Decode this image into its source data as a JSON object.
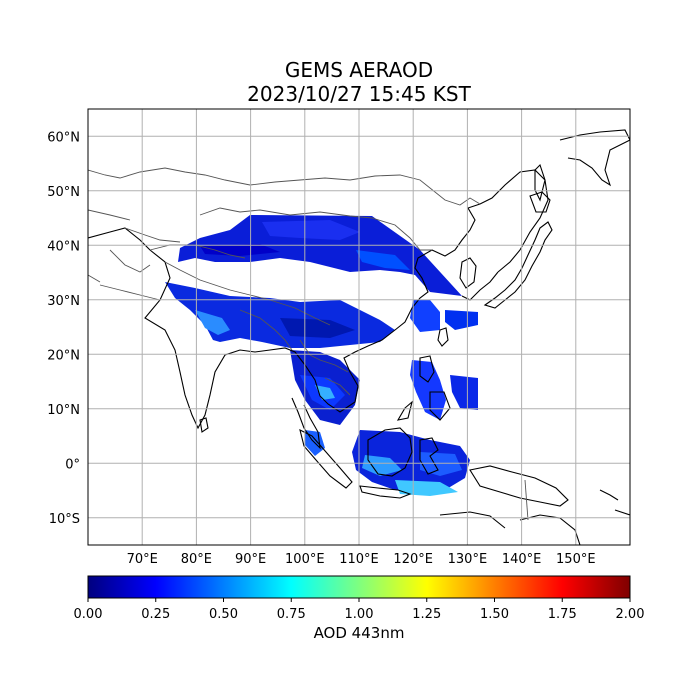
{
  "title": {
    "line1": "GEMS AERAOD",
    "line2": "2023/10/27 15:45 KST"
  },
  "map": {
    "lon_range": [
      60,
      160
    ],
    "lat_range": [
      -15,
      65
    ],
    "lon_gridlines": [
      70,
      80,
      90,
      100,
      110,
      120,
      130,
      140,
      150
    ],
    "lat_gridlines": [
      -10,
      0,
      10,
      20,
      30,
      40,
      50,
      60
    ],
    "lon_labels": [
      "70°E",
      "80°E",
      "90°E",
      "100°E",
      "110°E",
      "120°E",
      "130°E",
      "140°E",
      "150°E"
    ],
    "lat_labels": [
      "10°S",
      "0°",
      "10°N",
      "20°N",
      "30°N",
      "40°N",
      "50°N",
      "60°N"
    ],
    "gridline_color": "#b0b0b0",
    "coastline_color": "#000000",
    "border_color": "#555555"
  },
  "colorbar": {
    "colormap": "jet",
    "range": [
      0.0,
      2.0
    ],
    "ticks": [
      0.0,
      0.25,
      0.5,
      0.75,
      1.0,
      1.25,
      1.5,
      1.75,
      2.0
    ],
    "tick_labels": [
      "0.00",
      "0.25",
      "0.50",
      "0.75",
      "1.00",
      "1.25",
      "1.50",
      "1.75",
      "2.00"
    ],
    "label": "AOD 443nm",
    "stops": [
      "#00007f",
      "#0000ff",
      "#007fff",
      "#00ffff",
      "#7fff7f",
      "#ffff00",
      "#ff7f00",
      "#ff0000",
      "#7f0000"
    ]
  }
}
